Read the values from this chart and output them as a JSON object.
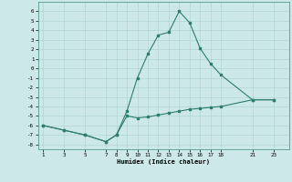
{
  "xlabel": "Humidex (Indice chaleur)",
  "background_color": "#cce8e8",
  "grid_color": "#b0d4d4",
  "line_color": "#2e7d6e",
  "line1_x": [
    1,
    3,
    5,
    7,
    8,
    9,
    10,
    11,
    12,
    13,
    14,
    15,
    16,
    17,
    18,
    21,
    23
  ],
  "line1_y": [
    -6.0,
    -6.5,
    -7.0,
    -7.7,
    -7.0,
    -4.5,
    -1.0,
    1.5,
    3.5,
    3.8,
    6.0,
    4.8,
    2.1,
    0.5,
    -0.7,
    -3.3,
    -3.3
  ],
  "line2_x": [
    1,
    3,
    5,
    7,
    8,
    9,
    10,
    11,
    12,
    13,
    14,
    15,
    16,
    17,
    18,
    21,
    23
  ],
  "line2_y": [
    -6.0,
    -6.5,
    -7.0,
    -7.7,
    -7.0,
    -5.0,
    -5.2,
    -5.1,
    -4.9,
    -4.7,
    -4.5,
    -4.3,
    -4.2,
    -4.1,
    -4.0,
    -3.3,
    -3.3
  ],
  "ylim": [
    -8.5,
    7.0
  ],
  "xlim": [
    0.5,
    24.5
  ],
  "yticks": [
    -8,
    -7,
    -6,
    -5,
    -4,
    -3,
    -2,
    -1,
    0,
    1,
    2,
    3,
    4,
    5,
    6
  ],
  "xticks": [
    1,
    3,
    5,
    7,
    8,
    9,
    10,
    11,
    12,
    13,
    14,
    15,
    16,
    17,
    18,
    21,
    23
  ]
}
